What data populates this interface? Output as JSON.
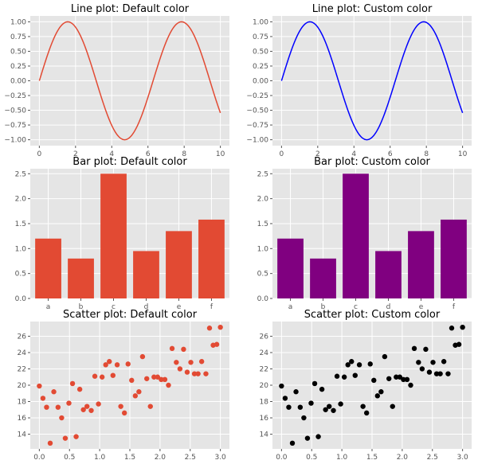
{
  "colors": {
    "panel_background": "#e5e5e5",
    "grid": "#ffffff",
    "default_series": "#e24a33",
    "custom_line": "#0000ff",
    "custom_bar": "#800080",
    "custom_scatter": "#000000"
  },
  "chart_data": [
    {
      "type": "line",
      "title": "Line plot: Default color",
      "color": "#e24a33",
      "x_function": "sin(x) for x in [0, 10]",
      "x": [
        0,
        0.5,
        1,
        1.5,
        2,
        2.5,
        3,
        3.5,
        4,
        4.5,
        5,
        5.5,
        6,
        6.5,
        7,
        7.5,
        8,
        8.5,
        9,
        9.5,
        10
      ],
      "y": [
        0.0,
        0.479,
        0.841,
        0.997,
        0.909,
        0.598,
        0.141,
        -0.351,
        -0.757,
        -0.978,
        -0.959,
        -0.706,
        -0.279,
        0.215,
        0.657,
        0.938,
        0.989,
        0.798,
        0.412,
        -0.075,
        -0.544
      ],
      "xlim": [
        -0.5,
        10.5
      ],
      "ylim": [
        -1.1,
        1.1
      ],
      "xticks": [
        "0",
        "2",
        "4",
        "6",
        "8",
        "10"
      ],
      "xtick_values": [
        0,
        2,
        4,
        6,
        8,
        10
      ],
      "yticks": [
        "−1.00",
        "−0.75",
        "−0.50",
        "−0.25",
        "0.00",
        "0.25",
        "0.50",
        "0.75",
        "1.00"
      ],
      "ytick_values": [
        -1,
        -0.75,
        -0.5,
        -0.25,
        0,
        0.25,
        0.5,
        0.75,
        1
      ],
      "grid": true
    },
    {
      "type": "line",
      "title": "Line plot: Custom color",
      "color": "#0000ff",
      "x": [
        0,
        0.5,
        1,
        1.5,
        2,
        2.5,
        3,
        3.5,
        4,
        4.5,
        5,
        5.5,
        6,
        6.5,
        7,
        7.5,
        8,
        8.5,
        9,
        9.5,
        10
      ],
      "y": [
        0.0,
        0.479,
        0.841,
        0.997,
        0.909,
        0.598,
        0.141,
        -0.351,
        -0.757,
        -0.978,
        -0.959,
        -0.706,
        -0.279,
        0.215,
        0.657,
        0.938,
        0.989,
        0.798,
        0.412,
        -0.075,
        -0.544
      ],
      "xlim": [
        -0.5,
        10.5
      ],
      "ylim": [
        -1.1,
        1.1
      ],
      "xticks": [
        "0",
        "2",
        "4",
        "6",
        "8",
        "10"
      ],
      "xtick_values": [
        0,
        2,
        4,
        6,
        8,
        10
      ],
      "yticks": [
        "−1.00",
        "−0.75",
        "−0.50",
        "−0.25",
        "0.00",
        "0.25",
        "0.50",
        "0.75",
        "1.00"
      ],
      "ytick_values": [
        -1,
        -0.75,
        -0.5,
        -0.25,
        0,
        0.25,
        0.5,
        0.75,
        1
      ],
      "grid": true
    },
    {
      "type": "bar",
      "title": "Bar plot: Default color",
      "color": "#e24a33",
      "categories": [
        "a",
        "b",
        "c",
        "d",
        "e",
        "f"
      ],
      "values": [
        1.2,
        0.8,
        2.5,
        0.95,
        1.35,
        1.58
      ],
      "xlim": [
        -0.55,
        5.55
      ],
      "ylim": [
        0,
        2.6
      ],
      "yticks": [
        "0.0",
        "0.5",
        "1.0",
        "1.5",
        "2.0",
        "2.5"
      ],
      "ytick_values": [
        0,
        0.5,
        1.0,
        1.5,
        2.0,
        2.5
      ],
      "grid": true
    },
    {
      "type": "bar",
      "title": "Bar plot: Custom color",
      "color": "#800080",
      "categories": [
        "a",
        "b",
        "c",
        "d",
        "e",
        "f"
      ],
      "values": [
        1.2,
        0.8,
        2.5,
        0.95,
        1.35,
        1.58
      ],
      "xlim": [
        -0.55,
        5.55
      ],
      "ylim": [
        0,
        2.6
      ],
      "yticks": [
        "0.0",
        "0.5",
        "1.0",
        "1.5",
        "2.0",
        "2.5"
      ],
      "ytick_values": [
        0,
        0.5,
        1.0,
        1.5,
        2.0,
        2.5
      ],
      "grid": true
    },
    {
      "type": "scatter",
      "title": "Scatter plot: Default color",
      "color": "#e24a33",
      "x": [
        0.0,
        0.06,
        0.12,
        0.18,
        0.24,
        0.31,
        0.37,
        0.43,
        0.49,
        0.55,
        0.61,
        0.67,
        0.73,
        0.79,
        0.86,
        0.92,
        0.98,
        1.04,
        1.1,
        1.16,
        1.22,
        1.29,
        1.35,
        1.41,
        1.47,
        1.53,
        1.59,
        1.65,
        1.71,
        1.78,
        1.84,
        1.9,
        1.96,
        2.02,
        2.08,
        2.14,
        2.2,
        2.27,
        2.33,
        2.39,
        2.45,
        2.51,
        2.57,
        2.63,
        2.69,
        2.76,
        2.82,
        2.88,
        2.94,
        3.0
      ],
      "y": [
        19.9,
        18.4,
        17.3,
        12.9,
        19.2,
        17.3,
        16.0,
        13.5,
        17.8,
        20.2,
        13.7,
        19.5,
        17.0,
        17.4,
        16.9,
        21.1,
        17.7,
        21.0,
        22.5,
        22.9,
        21.2,
        22.5,
        17.4,
        16.6,
        22.6,
        20.6,
        18.7,
        19.2,
        23.5,
        20.8,
        17.4,
        21.0,
        21.0,
        20.7,
        20.7,
        20.0,
        24.5,
        22.8,
        22.0,
        24.4,
        21.6,
        22.8,
        21.4,
        21.4,
        22.9,
        21.4,
        27.0,
        24.9,
        25.0,
        27.1
      ],
      "xlim": [
        -0.15,
        3.15
      ],
      "ylim": [
        12.2,
        27.8
      ],
      "xticks": [
        "0.0",
        "0.5",
        "1.0",
        "1.5",
        "2.0",
        "2.5",
        "3.0"
      ],
      "xtick_values": [
        0,
        0.5,
        1.0,
        1.5,
        2.0,
        2.5,
        3.0
      ],
      "yticks": [
        "14",
        "16",
        "18",
        "20",
        "22",
        "24",
        "26"
      ],
      "ytick_values": [
        14,
        16,
        18,
        20,
        22,
        24,
        26
      ],
      "grid": true
    },
    {
      "type": "scatter",
      "title": "Scatter plot: Custom color",
      "color": "#000000",
      "x": [
        0.0,
        0.06,
        0.12,
        0.18,
        0.24,
        0.31,
        0.37,
        0.43,
        0.49,
        0.55,
        0.61,
        0.67,
        0.73,
        0.79,
        0.86,
        0.92,
        0.98,
        1.04,
        1.1,
        1.16,
        1.22,
        1.29,
        1.35,
        1.41,
        1.47,
        1.53,
        1.59,
        1.65,
        1.71,
        1.78,
        1.84,
        1.9,
        1.96,
        2.02,
        2.08,
        2.14,
        2.2,
        2.27,
        2.33,
        2.39,
        2.45,
        2.51,
        2.57,
        2.63,
        2.69,
        2.76,
        2.82,
        2.88,
        2.94,
        3.0
      ],
      "y": [
        19.9,
        18.4,
        17.3,
        12.9,
        19.2,
        17.3,
        16.0,
        13.5,
        17.8,
        20.2,
        13.7,
        19.5,
        17.0,
        17.4,
        16.9,
        21.1,
        17.7,
        21.0,
        22.5,
        22.9,
        21.2,
        22.5,
        17.4,
        16.6,
        22.6,
        20.6,
        18.7,
        19.2,
        23.5,
        20.8,
        17.4,
        21.0,
        21.0,
        20.7,
        20.7,
        20.0,
        24.5,
        22.8,
        22.0,
        24.4,
        21.6,
        22.8,
        21.4,
        21.4,
        22.9,
        21.4,
        27.0,
        24.9,
        25.0,
        27.1
      ],
      "xlim": [
        -0.15,
        3.15
      ],
      "ylim": [
        12.2,
        27.8
      ],
      "xticks": [
        "0.0",
        "0.5",
        "1.0",
        "1.5",
        "2.0",
        "2.5",
        "3.0"
      ],
      "xtick_values": [
        0,
        0.5,
        1.0,
        1.5,
        2.0,
        2.5,
        3.0
      ],
      "yticks": [
        "14",
        "16",
        "18",
        "20",
        "22",
        "24",
        "26"
      ],
      "ytick_values": [
        14,
        16,
        18,
        20,
        22,
        24,
        26
      ],
      "grid": true
    }
  ]
}
